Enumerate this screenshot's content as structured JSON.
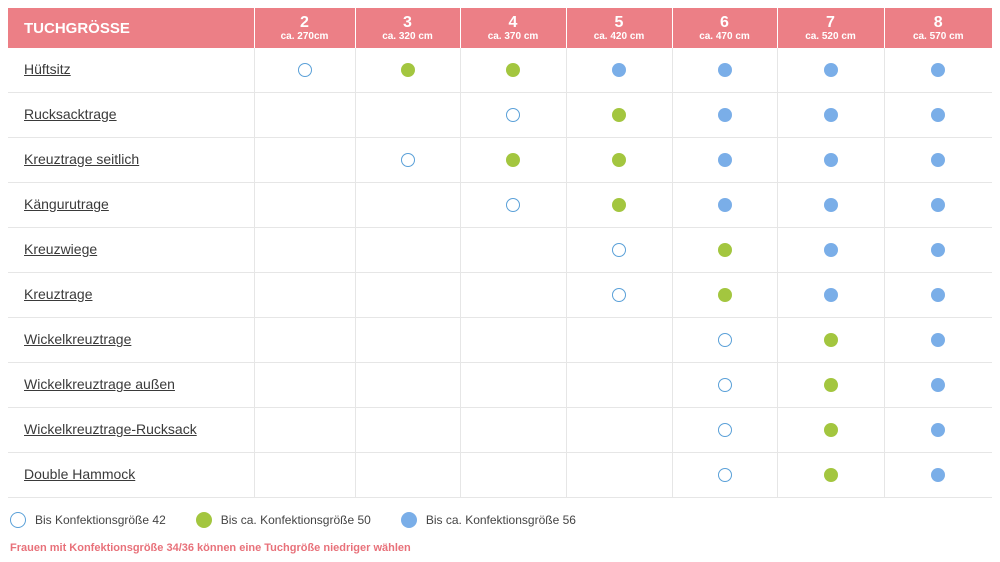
{
  "table": {
    "title": "TUCHGRÖSSE",
    "sizes": [
      {
        "num": "2",
        "length": "ca. 270cm"
      },
      {
        "num": "3",
        "length": "ca. 320 cm"
      },
      {
        "num": "4",
        "length": "ca. 370 cm"
      },
      {
        "num": "5",
        "length": "ca. 420 cm"
      },
      {
        "num": "6",
        "length": "ca. 470 cm"
      },
      {
        "num": "7",
        "length": "ca. 520 cm"
      },
      {
        "num": "8",
        "length": "ca. 570 cm"
      }
    ],
    "rows": [
      {
        "name": "Hüftsitz",
        "cells": [
          "o42",
          "g50",
          "g50",
          "b56",
          "b56",
          "b56",
          "b56"
        ]
      },
      {
        "name": "Rucksacktrage",
        "cells": [
          "",
          "",
          "o42",
          "g50",
          "b56",
          "b56",
          "b56"
        ]
      },
      {
        "name": "Kreuztrage seitlich",
        "cells": [
          "",
          "o42",
          "g50",
          "g50",
          "b56",
          "b56",
          "b56"
        ]
      },
      {
        "name": "Kängurutrage",
        "cells": [
          "",
          "",
          "o42",
          "g50",
          "b56",
          "b56",
          "b56"
        ]
      },
      {
        "name": "Kreuzwiege",
        "cells": [
          "",
          "",
          "",
          "o42",
          "g50",
          "b56",
          "b56"
        ]
      },
      {
        "name": "Kreuztrage",
        "cells": [
          "",
          "",
          "",
          "o42",
          "g50",
          "b56",
          "b56"
        ]
      },
      {
        "name": "Wickelkreuztrage",
        "cells": [
          "",
          "",
          "",
          "",
          "o42",
          "g50",
          "b56"
        ]
      },
      {
        "name": "Wickelkreuztrage außen",
        "cells": [
          "",
          "",
          "",
          "",
          "o42",
          "g50",
          "b56"
        ]
      },
      {
        "name": "Wickelkreuztrage-Rucksack",
        "cells": [
          "",
          "",
          "",
          "",
          "o42",
          "g50",
          "b56"
        ]
      },
      {
        "name": "Double Hammock",
        "cells": [
          "",
          "",
          "",
          "",
          "o42",
          "g50",
          "b56"
        ]
      }
    ]
  },
  "legend": [
    {
      "key": "o42",
      "label": "Bis Konfektionsgröße 42"
    },
    {
      "key": "g50",
      "label": "Bis ca. Konfektionsgröße 50"
    },
    {
      "key": "b56",
      "label": "Bis ca. Konfektionsgröße 56"
    }
  ],
  "note": "Frauen mit Konfektionsgröße 34/36 können eine Tuchgröße niedriger wählen",
  "colors": {
    "header_bg": "#ec7f86",
    "outline": "#5aa0d8",
    "green": "#a3c63f",
    "blue": "#7aaee8",
    "note": "#e8717a"
  }
}
